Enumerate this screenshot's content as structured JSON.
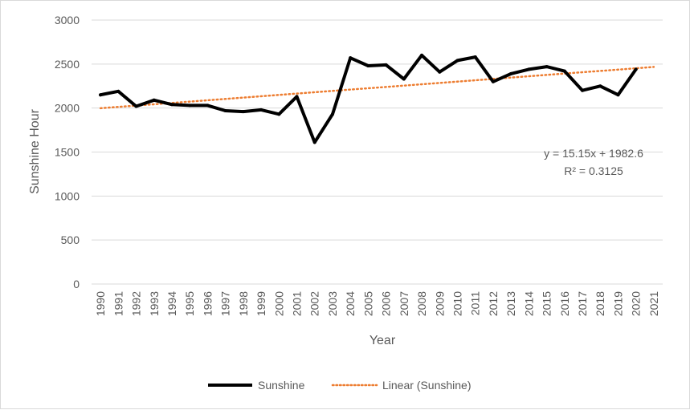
{
  "chart_data": {
    "type": "line",
    "xlabel": "Year",
    "ylabel": "Sunshine Hour",
    "ylim": [
      0,
      3000
    ],
    "yticks": [
      0,
      500,
      1000,
      1500,
      2000,
      2500,
      3000
    ],
    "categories": [
      "1990",
      "1991",
      "1992",
      "1993",
      "1994",
      "1995",
      "1996",
      "1997",
      "1998",
      "1999",
      "2000",
      "2001",
      "2002",
      "2003",
      "2004",
      "2005",
      "2006",
      "2007",
      "2008",
      "2009",
      "2010",
      "2011",
      "2012",
      "2013",
      "2014",
      "2015",
      "2016",
      "2017",
      "2018",
      "2019",
      "2020",
      "2021"
    ],
    "series": [
      {
        "name": "Sunshine",
        "color": "#000000",
        "values": [
          2150,
          2190,
          2020,
          2090,
          2040,
          2030,
          2030,
          1970,
          1960,
          1980,
          1930,
          2130,
          1610,
          1930,
          2570,
          2480,
          2490,
          2330,
          2600,
          2410,
          2540,
          2580,
          2300,
          2390,
          2440,
          2470,
          2420,
          2200,
          2250,
          2150,
          2440,
          null
        ]
      }
    ],
    "trendline": {
      "name": "Linear (Sunshine)",
      "color": "#ed7d31",
      "style": "dotted",
      "slope": 15.15,
      "intercept": 1982.6,
      "equation": "y = 15.15x + 1982.6",
      "r2": "R² = 0.3125"
    },
    "legend": {
      "placement": "bottom",
      "entries": [
        "Sunshine",
        "Linear (Sunshine)"
      ]
    },
    "grid": true
  }
}
